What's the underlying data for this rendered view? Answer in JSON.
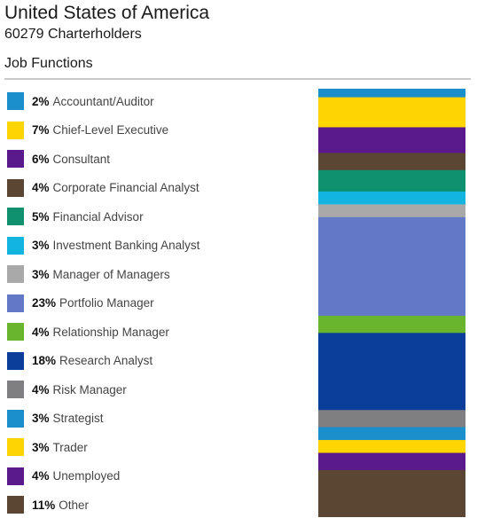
{
  "header": {
    "title": "United States of America",
    "subtitle": "60279 Charterholders"
  },
  "section_title": "Job Functions",
  "chart_data": {
    "type": "bar",
    "orientation": "stacked-vertical",
    "title": "Job Functions",
    "categories": [
      "Accountant/Auditor",
      "Chief-Level Executive",
      "Consultant",
      "Corporate Financial Analyst",
      "Financial Advisor",
      "Investment Banking Analyst",
      "Manager of Managers",
      "Portfolio Manager",
      "Relationship Manager",
      "Research Analyst",
      "Risk Manager",
      "Strategist",
      "Trader",
      "Unemployed",
      "Other"
    ],
    "values": [
      2,
      7,
      6,
      4,
      5,
      3,
      3,
      23,
      4,
      18,
      4,
      3,
      3,
      4,
      11
    ],
    "value_labels": [
      "2%",
      "7%",
      "6%",
      "4%",
      "5%",
      "3%",
      "3%",
      "23%",
      "4%",
      "18%",
      "4%",
      "3%",
      "3%",
      "4%",
      "11%"
    ],
    "colors": [
      "#1b8fcb",
      "#ffd500",
      "#5b1a8c",
      "#5a4633",
      "#0f9170",
      "#12b4e0",
      "#a9a9a9",
      "#6478c8",
      "#6ab52e",
      "#0a3e9a",
      "#7f7f82",
      "#1b8fcb",
      "#ffd500",
      "#5b1a8c",
      "#5a4633"
    ],
    "unit": "%",
    "legend_position": "left",
    "grid": false
  }
}
